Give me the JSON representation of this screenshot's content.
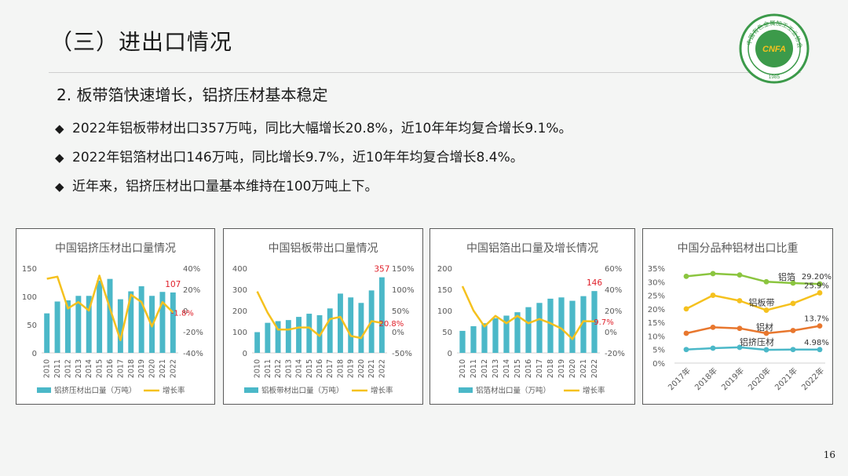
{
  "slide": {
    "title": "（三）进出口情况",
    "subtitle": "2. 板带箔快速增长，铝挤压材基本稳定",
    "bullet_symbol": "◆",
    "bullets": [
      "2022年铝板带材出口357万吨，同比大幅增长20.8%，近10年年均复合增长9.1%。",
      "2022年铝箔材出口146万吨，同比增长9.7%，近10年年均复合增长8.4%。",
      "近年来，铝挤压材出口量基本维持在100万吨上下。"
    ],
    "page_number": "16"
  },
  "logo": {
    "top_text": "中国有色金属加工工业协会",
    "center_text": "CNFA",
    "year": "1985",
    "color": "#3c9a4a"
  },
  "colors": {
    "bar": "#4bb8c8",
    "line": "#f5c11e",
    "label_red": "#e0212b"
  },
  "chart_data": [
    {
      "type": "bar",
      "title": "中国铝挤压材出口量情况",
      "categories": [
        "2010",
        "2011",
        "2012",
        "2013",
        "2014",
        "2015",
        "2016",
        "2017",
        "2018",
        "2019",
        "2020",
        "2021",
        "2022"
      ],
      "series": [
        {
          "name": "铝挤压材出口量（万吨）",
          "type": "bar",
          "axis": "left",
          "values": [
            70,
            91,
            93,
            101,
            101,
            128,
            131,
            95,
            109,
            118,
            101,
            108,
            107
          ]
        },
        {
          "name": "增长率",
          "type": "line",
          "axis": "right",
          "values": [
            30,
            32,
            2,
            8,
            0,
            33,
            2,
            -28,
            15,
            8,
            -15,
            8,
            -1.8
          ]
        }
      ],
      "ylim_left": [
        0,
        150
      ],
      "yticks_left": [
        "0",
        "50",
        "100",
        "150"
      ],
      "ylim_right": [
        -40,
        40
      ],
      "yticks_right": [
        "-40%",
        "-20%",
        "0",
        "20%",
        "40%"
      ],
      "annotations": {
        "bar_last": "107",
        "line_last": "-1.8%"
      },
      "legend_position": "bottom"
    },
    {
      "type": "bar",
      "title": "中国铝板带出口量情况",
      "categories": [
        "2010",
        "2011",
        "2012",
        "2013",
        "2014",
        "2015",
        "2016",
        "2017",
        "2018",
        "2019",
        "2020",
        "2021",
        "2022"
      ],
      "series": [
        {
          "name": "铝板带材出口量（万吨）",
          "type": "bar",
          "axis": "left",
          "values": [
            98,
            142,
            150,
            155,
            170,
            185,
            178,
            210,
            280,
            262,
            236,
            295,
            357
          ]
        },
        {
          "name": "增长率",
          "type": "line",
          "axis": "right",
          "values": [
            95,
            45,
            5,
            5,
            10,
            10,
            -10,
            30,
            35,
            -10,
            -15,
            25,
            20.8
          ]
        }
      ],
      "ylim_left": [
        0,
        400
      ],
      "yticks_left": [
        "0",
        "100",
        "200",
        "300",
        "400"
      ],
      "ylim_right": [
        -50,
        150
      ],
      "yticks_right": [
        "-50%",
        "0%",
        "50%",
        "100%",
        "150%"
      ],
      "annotations": {
        "bar_last": "357",
        "line_last": "20.8%"
      },
      "legend_position": "bottom"
    },
    {
      "type": "bar",
      "title": "中国铝箔出口量及增长情况",
      "categories": [
        "2010",
        "2011",
        "2012",
        "2013",
        "2014",
        "2015",
        "2016",
        "2017",
        "2018",
        "2019",
        "2020",
        "2021",
        "2022"
      ],
      "series": [
        {
          "name": "铝箔材出口量（万吨）",
          "type": "bar",
          "axis": "left",
          "values": [
            52,
            63,
            70,
            82,
            88,
            96,
            108,
            118,
            128,
            131,
            123,
            134,
            146
          ]
        },
        {
          "name": "增长率",
          "type": "line",
          "axis": "right",
          "values": [
            43,
            20,
            5,
            15,
            8,
            15,
            8,
            12,
            8,
            3,
            -7,
            10,
            9.7
          ]
        }
      ],
      "ylim_left": [
        0,
        200
      ],
      "yticks_left": [
        "0",
        "50",
        "100",
        "150",
        "200"
      ],
      "ylim_right": [
        -20,
        60
      ],
      "yticks_right": [
        "-20%",
        "0%",
        "20%",
        "40%",
        "60%"
      ],
      "annotations": {
        "bar_last": "146",
        "line_last": "9.7%"
      },
      "legend_position": "bottom"
    },
    {
      "type": "line",
      "title": "中国分品种铝材出口比重",
      "categories": [
        "2017年",
        "2018年",
        "2019年",
        "2020年",
        "2021年",
        "2022年"
      ],
      "series": [
        {
          "name": "铝箔",
          "color": "#8bc53f",
          "values": [
            32.0,
            33.0,
            32.5,
            30.0,
            29.5,
            29.2
          ]
        },
        {
          "name": "铝板带",
          "color": "#f5c11e",
          "values": [
            20.0,
            25.0,
            23.0,
            19.5,
            22.0,
            25.9
          ]
        },
        {
          "name": "铝材",
          "color": "#e8772e",
          "values": [
            11.0,
            13.2,
            12.8,
            11.0,
            12.0,
            13.7
          ]
        },
        {
          "name": "铝挤压材",
          "color": "#4bb8c8",
          "values": [
            5.0,
            5.5,
            5.8,
            4.9,
            5.0,
            4.98
          ]
        }
      ],
      "ylim": [
        0,
        35
      ],
      "yticks": [
        "0%",
        "5%",
        "10%",
        "15%",
        "20%",
        "25%",
        "30%",
        "35%"
      ],
      "end_labels": [
        "29.20%",
        "25.9%",
        "13.7%",
        "4.98%"
      ]
    }
  ]
}
